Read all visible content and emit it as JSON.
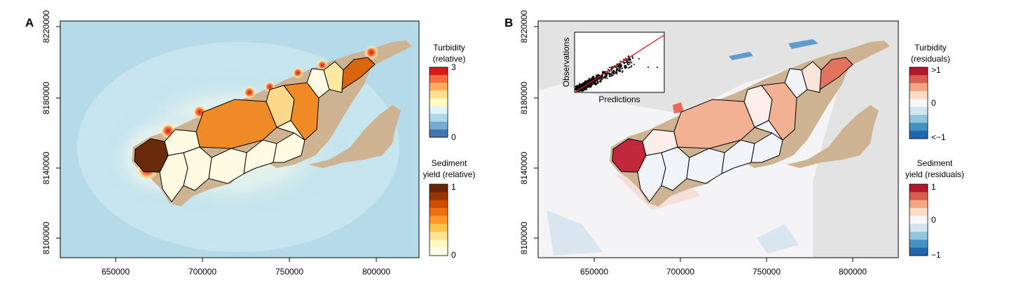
{
  "panels": [
    {
      "id": "A",
      "label": "A",
      "x_ticks": [
        "650000",
        "700000",
        "750000",
        "800000"
      ],
      "y_ticks": [
        "8220000",
        "8180000",
        "8140000",
        "8100000"
      ],
      "legends": [
        {
          "title_lines": [
            "Turbidity",
            "(relative)"
          ],
          "tick_top": "3",
          "tick_bottom": "0",
          "colors": [
            "#d7191c",
            "#f46d43",
            "#fdae61",
            "#fee090",
            "#ffffbf",
            "#e0f3f8",
            "#abd9e9",
            "#74add1",
            "#4575b4"
          ]
        },
        {
          "title_lines": [
            "Sediment",
            "yield (relative)"
          ],
          "tick_top": "1",
          "tick_bottom": "0",
          "colors": [
            "#662506",
            "#993404",
            "#cc4c02",
            "#ec7014",
            "#fe9929",
            "#fec44f",
            "#fee391",
            "#fff7bc",
            "#ffffe5"
          ]
        }
      ]
    },
    {
      "id": "B",
      "label": "B",
      "x_ticks": [
        "650000",
        "700000",
        "750000",
        "800000"
      ],
      "y_ticks": [
        "8220000",
        "8180000",
        "8140000",
        "8100000"
      ],
      "inset": {
        "xlabel": "Predictions",
        "ylabel": "Observations"
      },
      "legends": [
        {
          "title_lines": [
            "Turbidity",
            "(residuals)"
          ],
          "tick_top": ">1",
          "tick_mid": "0",
          "tick_bottom": "<−1",
          "colors": [
            "#b2182b",
            "#d6604d",
            "#f4a582",
            "#fddbc7",
            "#f7f7f7",
            "#d1e5f0",
            "#92c5de",
            "#4393c3",
            "#2166ac"
          ]
        },
        {
          "title_lines": [
            "Sediment",
            "yield (residuals)"
          ],
          "tick_top": "1",
          "tick_mid": "0",
          "tick_bottom": "−1",
          "colors": [
            "#b2182b",
            "#d6604d",
            "#f4a582",
            "#fddbc7",
            "#f7f7f7",
            "#d1e5f0",
            "#92c5de",
            "#4393c3",
            "#2166ac"
          ]
        }
      ]
    }
  ],
  "colors": {
    "sea_a": "#b5dbe8",
    "land": "#cdb391",
    "background_b": "#e3e3e3",
    "catchment_outline": "#000000",
    "fit_line": "#d7191c",
    "catch_a_brown": "#6b2a0a",
    "catch_a_orange": "#f08a24",
    "catch_a_pale": "#fffbe3",
    "catch_b_red": "#c0283a",
    "catch_b_salmon": "#f3b194",
    "catch_b_pale": "#f0f3f7"
  }
}
